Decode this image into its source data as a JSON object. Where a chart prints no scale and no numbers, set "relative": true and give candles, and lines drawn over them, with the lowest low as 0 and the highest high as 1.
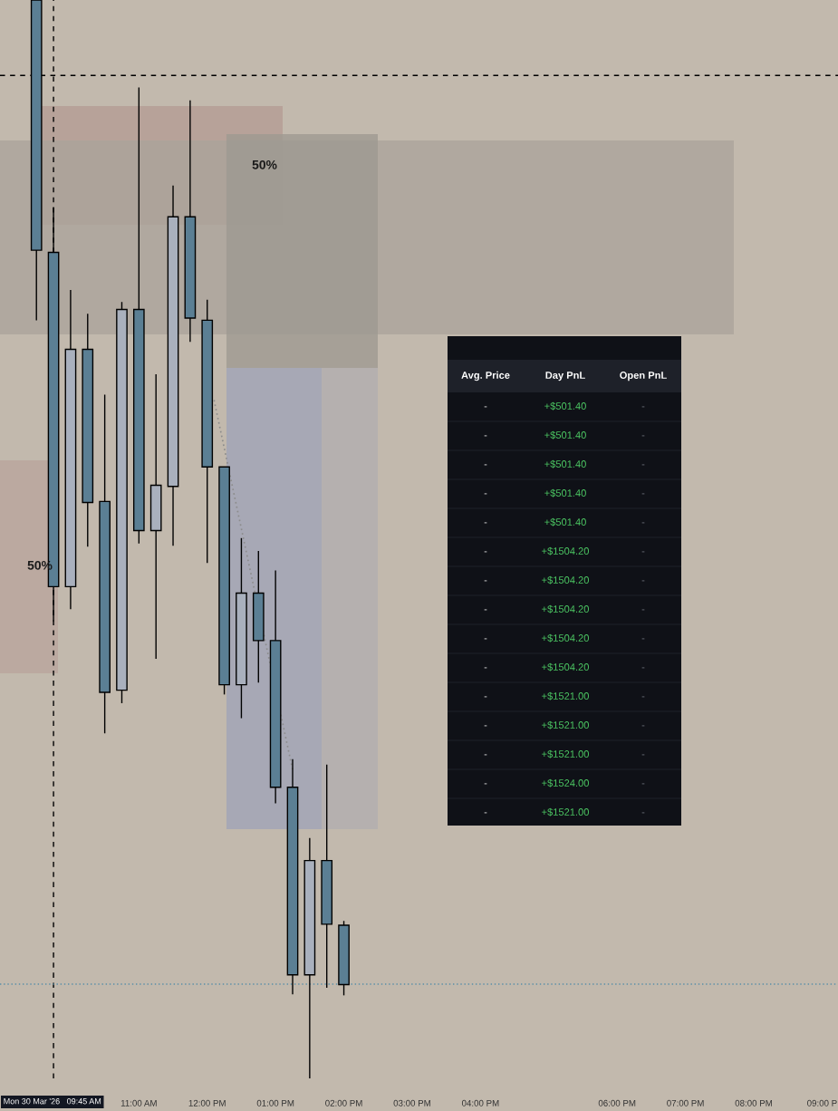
{
  "chart_data": [
    {
      "type": "candlestick",
      "relative": true,
      "x": [
        "2026-03-30T09:30",
        "2026-03-30T09:45",
        "2026-03-30T10:00",
        "2026-03-30T10:15",
        "2026-03-30T10:30",
        "2026-03-30T10:45",
        "2026-03-30T11:00",
        "2026-03-30T11:15",
        "2026-03-30T11:30",
        "2026-03-30T11:45",
        "2026-03-30T12:00",
        "2026-03-30T12:15",
        "2026-03-30T12:30",
        "2026-03-30T12:45",
        "2026-03-30T13:00",
        "2026-03-30T13:15",
        "2026-03-30T13:30",
        "2026-03-30T13:45",
        "2026-03-30T14:00"
      ],
      "ohlc": [
        [
          1.0,
          1.0,
          0.703,
          0.768
        ],
        [
          0.766,
          0.808,
          0.424,
          0.456
        ],
        [
          0.456,
          0.731,
          0.435,
          0.676
        ],
        [
          0.676,
          0.709,
          0.493,
          0.534
        ],
        [
          0.535,
          0.634,
          0.32,
          0.358
        ],
        [
          0.36,
          0.72,
          0.348,
          0.713
        ],
        [
          0.713,
          0.919,
          0.496,
          0.508
        ],
        [
          0.508,
          0.653,
          0.389,
          0.55
        ],
        [
          0.549,
          0.828,
          0.494,
          0.799
        ],
        [
          0.799,
          0.907,
          0.683,
          0.705
        ],
        [
          0.703,
          0.722,
          0.478,
          0.567
        ],
        [
          0.567,
          0.567,
          0.356,
          0.365
        ],
        [
          0.365,
          0.501,
          0.334,
          0.45
        ],
        [
          0.45,
          0.489,
          0.367,
          0.406
        ],
        [
          0.406,
          0.471,
          0.255,
          0.27
        ],
        [
          0.27,
          0.296,
          0.078,
          0.096
        ],
        [
          0.096,
          0.223,
          0.0,
          0.202
        ],
        [
          0.202,
          0.291,
          0.084,
          0.143
        ],
        [
          0.142,
          0.146,
          0.077,
          0.087
        ]
      ],
      "colors": [
        "#5b7f94",
        "#5b7f94",
        "#a9b0bd",
        "#5b7f94",
        "#5b7f94",
        "#a9b0bd",
        "#5b7f94",
        "#a9b0bd",
        "#a9b0bd",
        "#5b7f94",
        "#5b7f94",
        "#5b7f94",
        "#a9b0bd",
        "#5b7f94",
        "#5b7f94",
        "#5b7f94",
        "#a9b0bd",
        "#5b7f94",
        "#5b7f94"
      ],
      "series": [
        {
          "type": "line",
          "x": [
            "2026-03-30T12:06",
            "2026-03-30T13:15"
          ],
          "values": [
            0.629,
            0.286
          ],
          "color": "#8c8c8c",
          "line_style": "dotted"
        }
      ],
      "annotations": [
        "50%",
        "50%"
      ],
      "xlim": [
        "2026-03-30T08:58",
        "2026-03-30T21:14"
      ],
      "xticks": [
        {
          "value": "2026-03-30T11:00",
          "label": "11:00 AM"
        },
        {
          "value": "2026-03-30T12:00",
          "label": "12:00 PM"
        },
        {
          "value": "2026-03-30T13:00",
          "label": "01:00 PM"
        },
        {
          "value": "2026-03-30T14:00",
          "label": "02:00 PM"
        },
        {
          "value": "2026-03-30T15:00",
          "label": "03:00 PM"
        },
        {
          "value": "2026-03-30T16:00",
          "label": "04:00 PM"
        },
        {
          "value": "2026-03-30T18:00",
          "label": "06:00 PM"
        },
        {
          "value": "2026-03-30T19:00",
          "label": "07:00 PM"
        },
        {
          "value": "2026-03-30T20:00",
          "label": "08:00 PM"
        },
        {
          "value": "2026-03-30T21:00",
          "label": "09:00 P"
        }
      ],
      "tick_labels": "x",
      "ref_lines": [
        {
          "axis": "x",
          "value": "2026-03-30T09:45",
          "label": "Mon 30 Mar '26   09:45 AM",
          "color": "#000000",
          "line_style": "dashed"
        },
        {
          "axis": "y",
          "value": 0.93,
          "color": "#000000",
          "line_style": "dashed"
        },
        {
          "axis": "y",
          "value": 0.0874,
          "color": "#5a8fa8",
          "line_style": "dotted"
        }
      ]
    },
    {
      "type": "other",
      "categories": [
        "Avg. Price",
        "Day PnL",
        "Open PnL"
      ],
      "colors": [
        "#e6e6e6",
        "#4cc763",
        "#6d727c"
      ],
      "cell_labels": [
        [
          "-",
          "+$501.40",
          "-"
        ],
        [
          "-",
          "+$501.40",
          "-"
        ],
        [
          "-",
          "+$501.40",
          "-"
        ],
        [
          "-",
          "+$501.40",
          "-"
        ],
        [
          "-",
          "+$501.40",
          "-"
        ],
        [
          "-",
          "+$1504.20",
          "-"
        ],
        [
          "-",
          "+$1504.20",
          "-"
        ],
        [
          "-",
          "+$1504.20",
          "-"
        ],
        [
          "-",
          "+$1504.20",
          "-"
        ],
        [
          "-",
          "+$1504.20",
          "-"
        ],
        [
          "-",
          "+$1521.00",
          "-"
        ],
        [
          "-",
          "+$1521.00",
          "-"
        ],
        [
          "-",
          "+$1521.00",
          "-"
        ],
        [
          "-",
          "+$1524.00",
          "-"
        ],
        [
          "-",
          "+$1521.00",
          "-"
        ]
      ]
    }
  ]
}
